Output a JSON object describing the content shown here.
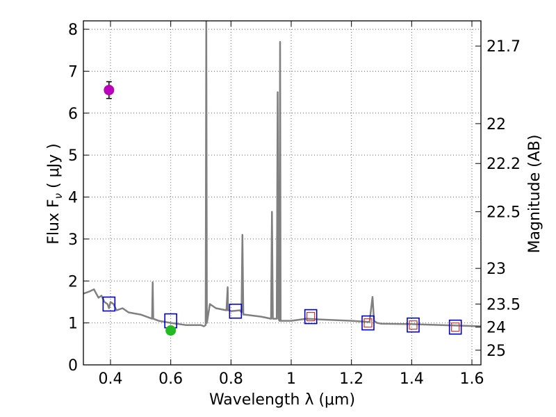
{
  "chart_data": {
    "type": "line",
    "xlabel": "Wavelength  λ (μm)",
    "ylabel": "Flux  F",
    "ylabel_sub": "ν",
    "ylabel_unit": "  ( μJy )",
    "y2label": "Magnitude (AB)",
    "xlim": [
      0.31,
      1.63
    ],
    "ylim": [
      0,
      8.2
    ],
    "x_ticks": [
      0.4,
      0.6,
      0.8,
      1.0,
      1.2,
      1.4,
      1.6
    ],
    "x_tick_labels": [
      "0.4",
      "0.6",
      "0.8",
      "1",
      "1.2",
      "1.4",
      "1.6"
    ],
    "y_ticks": [
      0,
      1,
      2,
      3,
      4,
      5,
      6,
      7,
      8
    ],
    "y_tick_labels": [
      "0",
      "1",
      "2",
      "3",
      "4",
      "5",
      "6",
      "7",
      "8"
    ],
    "y2_ticks": [
      {
        "flux": 7.6,
        "label": "21.7"
      },
      {
        "flux": 5.75,
        "label": "22"
      },
      {
        "flux": 4.8,
        "label": "22.2"
      },
      {
        "flux": 3.65,
        "label": "22.5"
      },
      {
        "flux": 2.3,
        "label": "23"
      },
      {
        "flux": 1.45,
        "label": "23.5"
      },
      {
        "flux": 0.9,
        "label": "24"
      },
      {
        "flux": 0.35,
        "label": "25"
      }
    ],
    "grid": true,
    "colors": {
      "spectrum": "#808080",
      "model_box": "#0000cc",
      "observed_point": "#cc3333",
      "uv_point": "#bb00bb",
      "green_point": "#22bb22",
      "error_bar": "#000000"
    },
    "spectrum": {
      "x": [
        0.31,
        0.33,
        0.345,
        0.36,
        0.37,
        0.38,
        0.39,
        0.395,
        0.4,
        0.41,
        0.42,
        0.44,
        0.46,
        0.5,
        0.538,
        0.54,
        0.542,
        0.56,
        0.6,
        0.65,
        0.7,
        0.71,
        0.716,
        0.718,
        0.72,
        0.73,
        0.75,
        0.785,
        0.789,
        0.79,
        0.795,
        0.8,
        0.83,
        0.835,
        0.838,
        0.841,
        0.845,
        0.9,
        0.933,
        0.936,
        0.939,
        0.945,
        0.952,
        0.955,
        0.958,
        0.961,
        0.963,
        0.965,
        0.968,
        0.971,
        1.0,
        1.05,
        1.1,
        1.2,
        1.26,
        1.27,
        1.275,
        1.285,
        1.3,
        1.4,
        1.5,
        1.63
      ],
      "y": [
        1.7,
        1.75,
        1.8,
        1.6,
        1.65,
        1.5,
        1.45,
        1.35,
        1.5,
        1.45,
        1.3,
        1.35,
        1.25,
        1.2,
        1.1,
        1.97,
        1.1,
        1.05,
        1.0,
        0.95,
        0.95,
        0.92,
        0.95,
        8.2,
        1.0,
        1.45,
        1.35,
        1.3,
        1.85,
        1.3,
        1.3,
        1.28,
        1.3,
        1.25,
        3.1,
        1.2,
        1.2,
        1.15,
        1.1,
        3.65,
        1.1,
        1.1,
        1.1,
        6.5,
        1.1,
        1.05,
        7.7,
        1.05,
        1.05,
        1.05,
        1.05,
        1.1,
        1.08,
        1.05,
        1.02,
        1.62,
        1.05,
        1.0,
        0.98,
        0.97,
        0.95,
        0.92
      ]
    },
    "series": [
      {
        "marker": "open-square",
        "x": [
          0.395,
          0.6,
          0.815,
          1.065,
          1.255,
          1.405,
          1.545
        ],
        "y": [
          1.45,
          1.05,
          1.28,
          1.15,
          1.0,
          0.95,
          0.9
        ]
      },
      {
        "marker": "small-open-square",
        "x": [
          1.065,
          1.255,
          1.405,
          1.545
        ],
        "y": [
          1.15,
          1.0,
          0.95,
          0.9
        ]
      },
      {
        "marker": "filled-circle",
        "x": [
          0.395
        ],
        "y": [
          6.55
        ],
        "yerr": [
          0.2
        ]
      },
      {
        "marker": "filled-circle",
        "x": [
          0.6
        ],
        "y": [
          0.82
        ],
        "yerr": [
          0.05
        ]
      }
    ]
  }
}
